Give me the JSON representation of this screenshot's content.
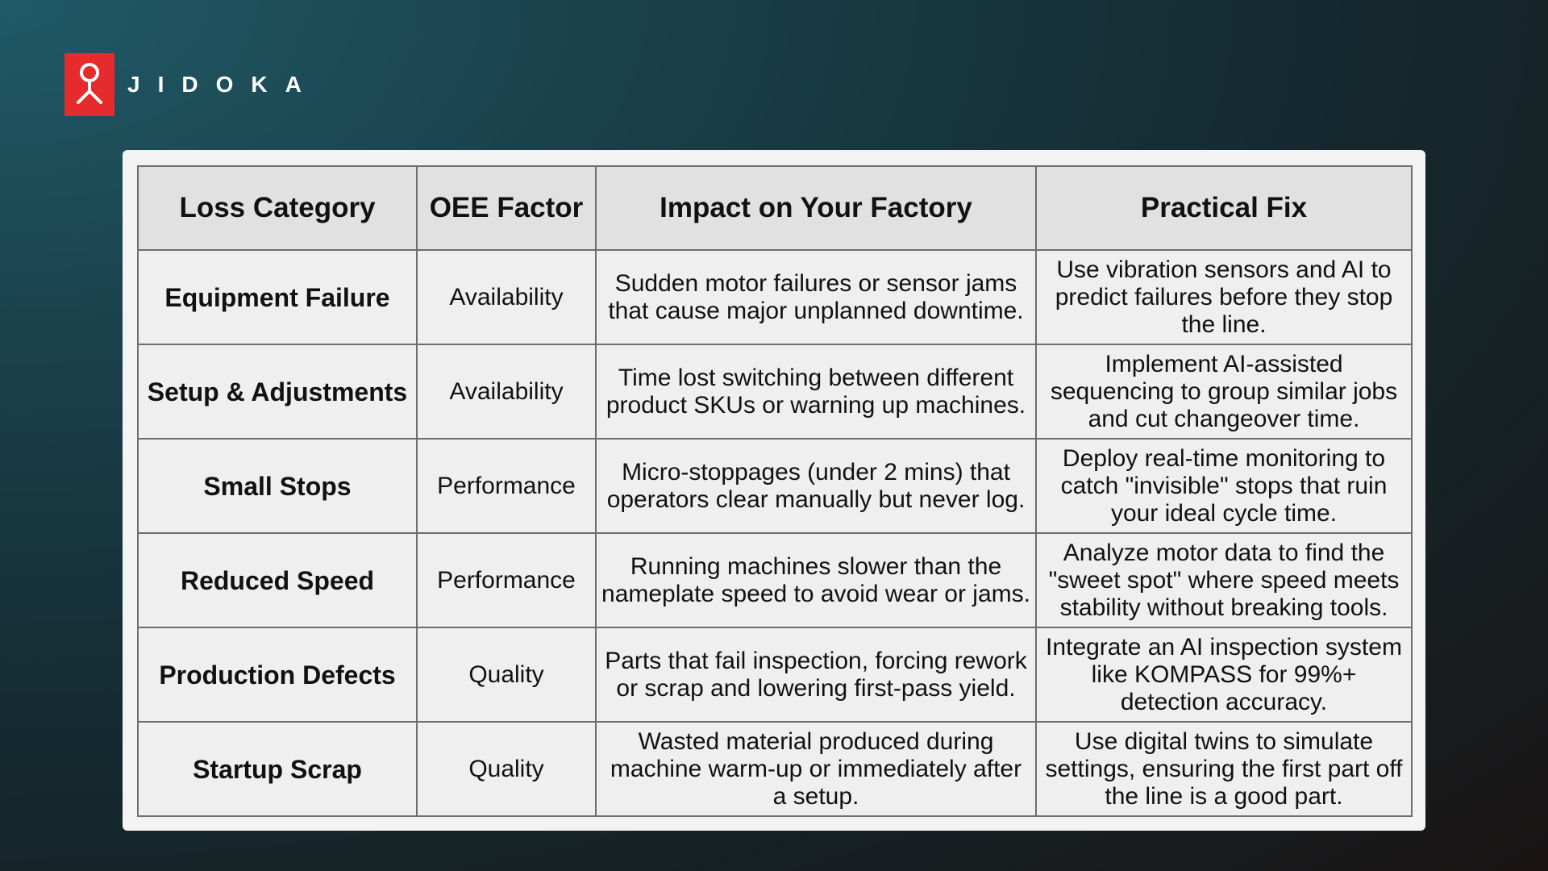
{
  "brand": {
    "name": "JIDOKA",
    "accent": "#e52b2b"
  },
  "table": {
    "headers": [
      "Loss Category",
      "OEE Factor",
      "Impact on Your Factory",
      "Practical Fix"
    ],
    "rows": [
      {
        "category": "Equipment Failure",
        "factor": "Availability",
        "impact": "Sudden motor failures or sensor jams that cause major unplanned downtime.",
        "fix": "Use vibration sensors and AI to predict failures before they stop the line."
      },
      {
        "category": "Setup & Adjustments",
        "factor": "Availability",
        "impact": "Time lost switching between different product SKUs or warning up machines.",
        "fix": "Implement AI-assisted sequencing to group similar jobs and cut changeover time."
      },
      {
        "category": "Small Stops",
        "factor": "Performance",
        "impact": "Micro-stoppages (under 2 mins) that operators clear manually but never log.",
        "fix": "Deploy real-time monitoring to catch \"invisible\" stops that ruin your ideal cycle time."
      },
      {
        "category": "Reduced Speed",
        "factor": "Performance",
        "impact": "Running machines slower than the nameplate speed to avoid wear or jams.",
        "fix": "Analyze motor data to find the \"sweet spot\" where speed meets stability without breaking tools."
      },
      {
        "category": "Production Defects",
        "factor": "Quality",
        "impact": "Parts that fail inspection, forcing rework or scrap and lowering first-pass yield.",
        "fix": "Integrate an AI inspection system like KOMPASS for 99%+ detection accuracy."
      },
      {
        "category": "Startup Scrap",
        "factor": "Quality",
        "impact": "Wasted material produced during machine warm-up or immediately after a setup.",
        "fix": "Use digital twins to simulate settings, ensuring the first part off the line is a good part."
      }
    ]
  }
}
